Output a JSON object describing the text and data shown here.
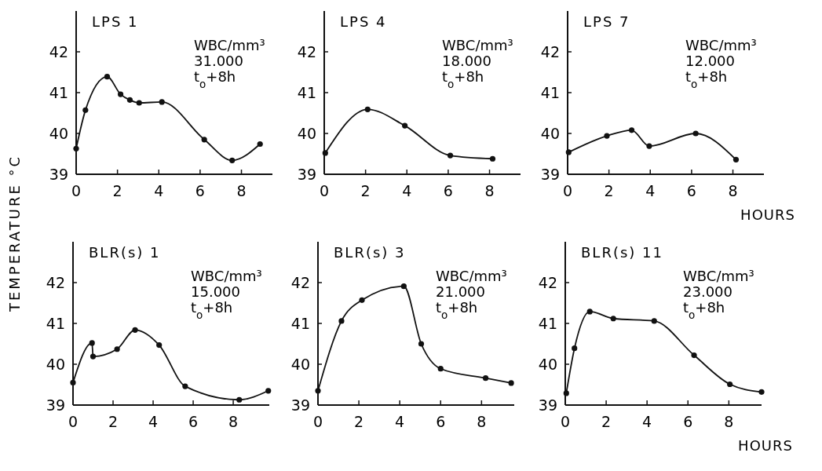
{
  "chart_data": [
    {
      "type": "line",
      "title": "LPS 1",
      "ylabel": "TEMPERATURE °C",
      "annotations": [
        "WBC/mm³",
        "31.000",
        "t$_{o}$+8h"
      ],
      "marker": "circle",
      "xlim": [
        0,
        9.5
      ],
      "ylim": [
        39,
        43
      ],
      "xticks": [
        0,
        2,
        4,
        6,
        8
      ],
      "yticks": [
        39,
        40,
        41,
        42
      ],
      "x": [
        0,
        0.45,
        1.5,
        2.15,
        2.6,
        3.05,
        4.15,
        6.2,
        7.55,
        8.9
      ],
      "values": [
        39.63,
        40.57,
        41.39,
        40.96,
        40.82,
        40.75,
        40.77,
        39.85,
        39.34,
        39.74
      ]
    },
    {
      "type": "line",
      "title": "LPS 4",
      "annotations": [
        "WBC/mm³",
        "18.000",
        "t$_{o}$+8h"
      ],
      "marker": "circle",
      "xlim": [
        0,
        9.5
      ],
      "ylim": [
        39,
        43
      ],
      "xticks": [
        0,
        2,
        4,
        6,
        8
      ],
      "yticks": [
        39,
        40,
        41,
        42
      ],
      "x": [
        0.05,
        2.1,
        3.9,
        6.1,
        8.15
      ],
      "values": [
        39.52,
        40.59,
        40.19,
        39.46,
        39.38
      ]
    },
    {
      "type": "line",
      "title": "LPS 7",
      "xlabel": "HOURS",
      "annotations": [
        "WBC/mm³",
        "12.000",
        "t$_{o}$+8h"
      ],
      "marker": "circle",
      "xlim": [
        0,
        9.5
      ],
      "ylim": [
        39,
        43
      ],
      "xticks": [
        0,
        2,
        4,
        6,
        8
      ],
      "yticks": [
        39,
        40,
        41,
        42
      ],
      "x": [
        0.05,
        1.9,
        3.1,
        3.95,
        6.2,
        8.15
      ],
      "values": [
        39.54,
        39.94,
        40.08,
        39.69,
        40.0,
        39.36
      ]
    },
    {
      "type": "line",
      "title": "BLR(s) 1",
      "annotations": [
        "WBC/mm³",
        "15.000",
        "t$_{o}$+8h"
      ],
      "marker": "circle",
      "xlim": [
        0,
        9.8
      ],
      "ylim": [
        39,
        43
      ],
      "xticks": [
        0,
        2,
        4,
        6,
        8
      ],
      "yticks": [
        39,
        40,
        41,
        42
      ],
      "x": [
        0,
        0.95,
        1.0,
        2.2,
        3.1,
        4.3,
        5.6,
        8.3,
        9.75
      ],
      "values": [
        39.55,
        40.52,
        40.19,
        40.37,
        40.84,
        40.47,
        39.46,
        39.13,
        39.35
      ]
    },
    {
      "type": "line",
      "title": "BLR(s) 3",
      "annotations": [
        "WBC/mm³",
        "21.000",
        "t$_{o}$+8h"
      ],
      "marker": "circle",
      "xlim": [
        0,
        9.6
      ],
      "ylim": [
        39,
        43
      ],
      "xticks": [
        0,
        2,
        4,
        6,
        8
      ],
      "yticks": [
        39,
        40,
        41,
        42
      ],
      "x": [
        0,
        1.15,
        2.15,
        4.2,
        5.05,
        6.0,
        8.2,
        9.45
      ],
      "values": [
        39.35,
        41.06,
        41.57,
        41.91,
        40.5,
        39.89,
        39.66,
        39.54
      ]
    },
    {
      "type": "line",
      "title": "BLR(s) 11",
      "xlabel": "HOURS",
      "annotations": [
        "WBC/mm³",
        "23.000",
        "t$_{o}$+8h"
      ],
      "marker": "circle",
      "xlim": [
        0,
        9.6
      ],
      "ylim": [
        39,
        43
      ],
      "xticks": [
        0,
        2,
        4,
        6,
        8
      ],
      "yticks": [
        39,
        40,
        41,
        42
      ],
      "x": [
        0.05,
        0.45,
        1.2,
        2.35,
        4.35,
        6.3,
        8.05,
        9.6
      ],
      "values": [
        39.29,
        40.39,
        41.29,
        41.12,
        41.06,
        40.22,
        39.51,
        39.32
      ]
    }
  ]
}
